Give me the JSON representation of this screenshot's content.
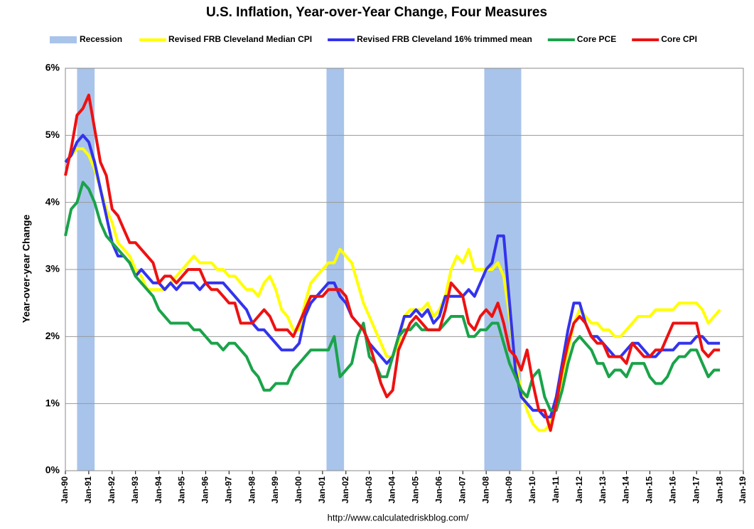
{
  "chart_data": {
    "type": "line",
    "title": "U.S. Inflation, Year-over-Year Change, Four Measures",
    "ylabel": "Year-over-year Change",
    "source": "http://www.calculatedriskblog.com/",
    "grid": true,
    "legend": "top",
    "xlim": [
      1990,
      2019
    ],
    "ylim": [
      0,
      6
    ],
    "xticks": [
      {
        "value": 1990,
        "label": "Jan-90"
      },
      {
        "value": 1991,
        "label": "Jan-91"
      },
      {
        "value": 1992,
        "label": "Jan-92"
      },
      {
        "value": 1993,
        "label": "Jan-93"
      },
      {
        "value": 1994,
        "label": "Jan-94"
      },
      {
        "value": 1995,
        "label": "Jan-95"
      },
      {
        "value": 1996,
        "label": "Jan-96"
      },
      {
        "value": 1997,
        "label": "Jan-97"
      },
      {
        "value": 1998,
        "label": "Jan-98"
      },
      {
        "value": 1999,
        "label": "Jan-99"
      },
      {
        "value": 2000,
        "label": "Jan-00"
      },
      {
        "value": 2001,
        "label": "Jan-01"
      },
      {
        "value": 2002,
        "label": "Jan-02"
      },
      {
        "value": 2003,
        "label": "Jan-03"
      },
      {
        "value": 2004,
        "label": "Jan-04"
      },
      {
        "value": 2005,
        "label": "Jan-05"
      },
      {
        "value": 2006,
        "label": "Jan-06"
      },
      {
        "value": 2007,
        "label": "Jan-07"
      },
      {
        "value": 2008,
        "label": "Jan-08"
      },
      {
        "value": 2009,
        "label": "Jan-09"
      },
      {
        "value": 2010,
        "label": "Jan-10"
      },
      {
        "value": 2011,
        "label": "Jan-11"
      },
      {
        "value": 2012,
        "label": "Jan-12"
      },
      {
        "value": 2013,
        "label": "Jan-13"
      },
      {
        "value": 2014,
        "label": "Jan-14"
      },
      {
        "value": 2015,
        "label": "Jan-15"
      },
      {
        "value": 2016,
        "label": "Jan-16"
      },
      {
        "value": 2017,
        "label": "Jan-17"
      },
      {
        "value": 2018,
        "label": "Jan-18"
      },
      {
        "value": 2019,
        "label": "Jan-19"
      }
    ],
    "yticks": [
      {
        "value": 0,
        "label": "0%"
      },
      {
        "value": 1,
        "label": "1%"
      },
      {
        "value": 2,
        "label": "2%"
      },
      {
        "value": 3,
        "label": "3%"
      },
      {
        "value": 4,
        "label": "4%"
      },
      {
        "value": 5,
        "label": "5%"
      },
      {
        "value": 6,
        "label": "6%"
      }
    ],
    "recessions": {
      "name": "Recession",
      "color": "#a9c4ea",
      "periods": [
        [
          1990.5,
          1991.25
        ],
        [
          2001.17,
          2001.92
        ],
        [
          2007.92,
          2009.5
        ]
      ]
    },
    "x": [
      1990,
      1990.25,
      1990.5,
      1990.75,
      1991,
      1991.25,
      1991.5,
      1991.75,
      1992,
      1992.25,
      1992.5,
      1992.75,
      1993,
      1993.25,
      1993.5,
      1993.75,
      1994,
      1994.25,
      1994.5,
      1994.75,
      1995,
      1995.25,
      1995.5,
      1995.75,
      1996,
      1996.25,
      1996.5,
      1996.75,
      1997,
      1997.25,
      1997.5,
      1997.75,
      1998,
      1998.25,
      1998.5,
      1998.75,
      1999,
      1999.25,
      1999.5,
      1999.75,
      2000,
      2000.25,
      2000.5,
      2000.75,
      2001,
      2001.25,
      2001.5,
      2001.75,
      2002,
      2002.25,
      2002.5,
      2002.75,
      2003,
      2003.25,
      2003.5,
      2003.75,
      2004,
      2004.25,
      2004.5,
      2004.75,
      2005,
      2005.25,
      2005.5,
      2005.75,
      2006,
      2006.25,
      2006.5,
      2006.75,
      2007,
      2007.25,
      2007.5,
      2007.75,
      2008,
      2008.25,
      2008.5,
      2008.75,
      2009,
      2009.25,
      2009.5,
      2009.75,
      2010,
      2010.25,
      2010.5,
      2010.75,
      2011,
      2011.25,
      2011.5,
      2011.75,
      2012,
      2012.25,
      2012.5,
      2012.75,
      2013,
      2013.25,
      2013.5,
      2013.75,
      2014,
      2014.25,
      2014.5,
      2014.75,
      2015,
      2015.25,
      2015.5,
      2015.75,
      2016,
      2016.25,
      2016.5,
      2016.75,
      2017,
      2017.25,
      2017.5,
      2017.75,
      2018
    ],
    "series": [
      {
        "name": "Revised FRB Cleveland Median CPI",
        "color": "#ffff00",
        "values": [
          4.6,
          4.7,
          4.8,
          4.8,
          4.7,
          4.5,
          4.2,
          3.9,
          3.7,
          3.4,
          3.3,
          3.2,
          3.0,
          2.9,
          2.7,
          2.7,
          2.7,
          2.7,
          2.8,
          2.9,
          3.0,
          3.1,
          3.2,
          3.1,
          3.1,
          3.1,
          3.0,
          3.0,
          2.9,
          2.9,
          2.8,
          2.7,
          2.7,
          2.6,
          2.8,
          2.9,
          2.7,
          2.4,
          2.3,
          2.1,
          2.1,
          2.5,
          2.8,
          2.9,
          3.0,
          3.1,
          3.1,
          3.3,
          3.2,
          3.1,
          2.8,
          2.5,
          2.3,
          2.1,
          1.9,
          1.7,
          1.7,
          1.9,
          2.3,
          2.4,
          2.4,
          2.4,
          2.5,
          2.3,
          2.4,
          2.6,
          3.0,
          3.2,
          3.1,
          3.3,
          3.0,
          3.0,
          3.0,
          3.0,
          3.1,
          2.9,
          2.3,
          1.6,
          1.2,
          0.9,
          0.7,
          0.6,
          0.6,
          0.7,
          1.0,
          1.4,
          1.8,
          2.2,
          2.4,
          2.3,
          2.2,
          2.2,
          2.1,
          2.1,
          2.0,
          2.0,
          2.1,
          2.2,
          2.3,
          2.3,
          2.3,
          2.4,
          2.4,
          2.4,
          2.4,
          2.5,
          2.5,
          2.5,
          2.5,
          2.4,
          2.2,
          2.3,
          2.4
        ]
      },
      {
        "name": "Revised FRB Cleveland 16% trimmed mean",
        "color": "#3333ee",
        "values": [
          4.6,
          4.7,
          4.9,
          5.0,
          4.9,
          4.6,
          4.2,
          3.8,
          3.4,
          3.2,
          3.2,
          3.1,
          2.9,
          3.0,
          2.9,
          2.8,
          2.8,
          2.7,
          2.8,
          2.7,
          2.8,
          2.8,
          2.8,
          2.7,
          2.8,
          2.8,
          2.8,
          2.8,
          2.7,
          2.6,
          2.5,
          2.4,
          2.2,
          2.1,
          2.1,
          2.0,
          1.9,
          1.8,
          1.8,
          1.8,
          1.9,
          2.3,
          2.5,
          2.6,
          2.7,
          2.8,
          2.8,
          2.6,
          2.5,
          2.3,
          2.2,
          2.1,
          1.9,
          1.8,
          1.7,
          1.6,
          1.7,
          2.0,
          2.3,
          2.3,
          2.4,
          2.3,
          2.4,
          2.2,
          2.3,
          2.6,
          2.6,
          2.6,
          2.6,
          2.7,
          2.6,
          2.8,
          3.0,
          3.1,
          3.5,
          3.5,
          2.5,
          1.5,
          1.1,
          1.0,
          0.9,
          0.9,
          0.8,
          0.8,
          1.1,
          1.6,
          2.1,
          2.5,
          2.5,
          2.2,
          2.0,
          2.0,
          1.9,
          1.8,
          1.7,
          1.7,
          1.8,
          1.9,
          1.9,
          1.8,
          1.7,
          1.7,
          1.8,
          1.8,
          1.8,
          1.9,
          1.9,
          1.9,
          2.0,
          2.0,
          1.9,
          1.9,
          1.9
        ]
      },
      {
        "name": "Core PCE",
        "color": "#1aa34a",
        "values": [
          3.5,
          3.9,
          4.0,
          4.3,
          4.2,
          4.0,
          3.7,
          3.5,
          3.4,
          3.3,
          3.2,
          3.1,
          2.9,
          2.8,
          2.7,
          2.6,
          2.4,
          2.3,
          2.2,
          2.2,
          2.2,
          2.2,
          2.1,
          2.1,
          2.0,
          1.9,
          1.9,
          1.8,
          1.9,
          1.9,
          1.8,
          1.7,
          1.5,
          1.4,
          1.2,
          1.2,
          1.3,
          1.3,
          1.3,
          1.5,
          1.6,
          1.7,
          1.8,
          1.8,
          1.8,
          1.8,
          2.0,
          1.4,
          1.5,
          1.6,
          2.0,
          2.2,
          1.7,
          1.6,
          1.4,
          1.4,
          1.7,
          2.0,
          2.1,
          2.1,
          2.2,
          2.1,
          2.1,
          2.1,
          2.1,
          2.2,
          2.3,
          2.3,
          2.3,
          2.0,
          2.0,
          2.1,
          2.1,
          2.2,
          2.2,
          1.9,
          1.6,
          1.4,
          1.2,
          1.1,
          1.4,
          1.5,
          1.1,
          0.9,
          0.9,
          1.2,
          1.6,
          1.9,
          2.0,
          1.9,
          1.8,
          1.6,
          1.6,
          1.4,
          1.5,
          1.5,
          1.4,
          1.6,
          1.6,
          1.6,
          1.4,
          1.3,
          1.3,
          1.4,
          1.6,
          1.7,
          1.7,
          1.8,
          1.8,
          1.6,
          1.4,
          1.5,
          1.5
        ]
      },
      {
        "name": "Core CPI",
        "color": "#ee1111",
        "values": [
          4.4,
          4.8,
          5.3,
          5.4,
          5.6,
          5.1,
          4.6,
          4.4,
          3.9,
          3.8,
          3.6,
          3.4,
          3.4,
          3.3,
          3.2,
          3.1,
          2.8,
          2.9,
          2.9,
          2.8,
          2.9,
          3.0,
          3.0,
          3.0,
          2.8,
          2.7,
          2.7,
          2.6,
          2.5,
          2.5,
          2.2,
          2.2,
          2.2,
          2.3,
          2.4,
          2.3,
          2.1,
          2.1,
          2.1,
          2.0,
          2.2,
          2.4,
          2.6,
          2.6,
          2.6,
          2.7,
          2.7,
          2.7,
          2.6,
          2.3,
          2.2,
          2.1,
          1.9,
          1.6,
          1.3,
          1.1,
          1.2,
          1.8,
          2.0,
          2.2,
          2.3,
          2.2,
          2.1,
          2.1,
          2.1,
          2.4,
          2.8,
          2.7,
          2.6,
          2.2,
          2.1,
          2.3,
          2.4,
          2.3,
          2.5,
          2.2,
          1.8,
          1.7,
          1.5,
          1.8,
          1.3,
          0.9,
          0.9,
          0.6,
          1.0,
          1.5,
          1.9,
          2.2,
          2.3,
          2.2,
          2.0,
          1.9,
          1.9,
          1.7,
          1.7,
          1.7,
          1.6,
          1.9,
          1.8,
          1.7,
          1.7,
          1.8,
          1.8,
          2.0,
          2.2,
          2.2,
          2.2,
          2.2,
          2.2,
          1.8,
          1.7,
          1.8,
          1.8
        ]
      }
    ]
  }
}
